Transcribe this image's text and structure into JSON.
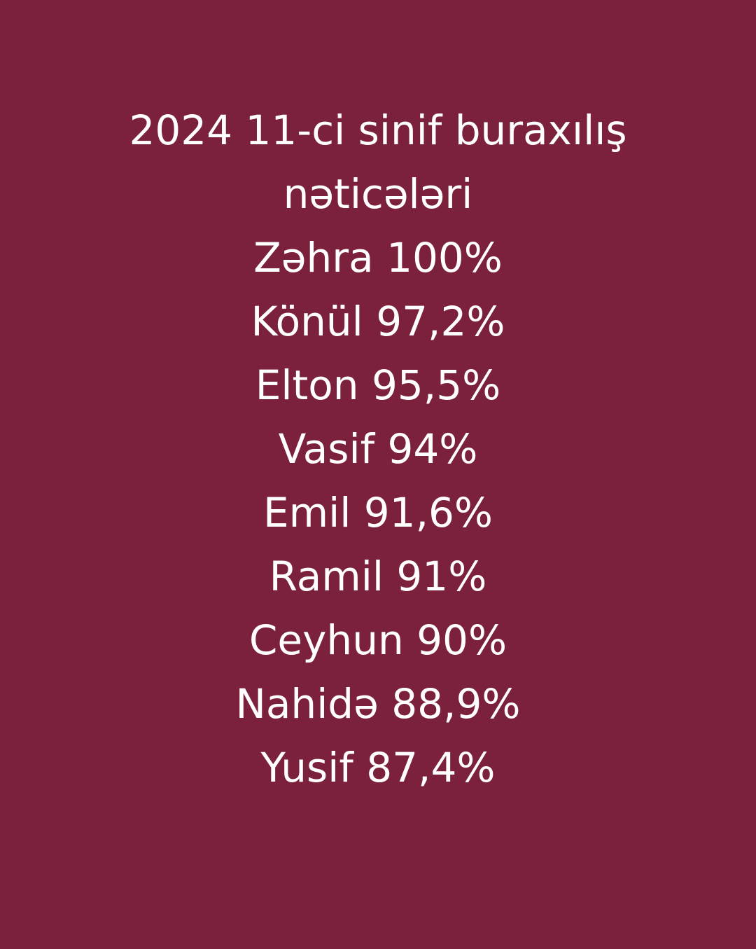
{
  "background_color": "#7b213b",
  "text_color": "#ffffff",
  "title_line1": "2024 11-ci sinif buraxılış",
  "title_line2": "nəticələri",
  "results": [
    "Zəhra 100%",
    "Könül 97,2%",
    "Elton 95,5%",
    "Vasif 94%",
    "Emil 91,6%",
    "Ramil 91%",
    "Ceyhun 90%",
    "Nahidə 88,9%",
    "Yusif 87,4%"
  ]
}
